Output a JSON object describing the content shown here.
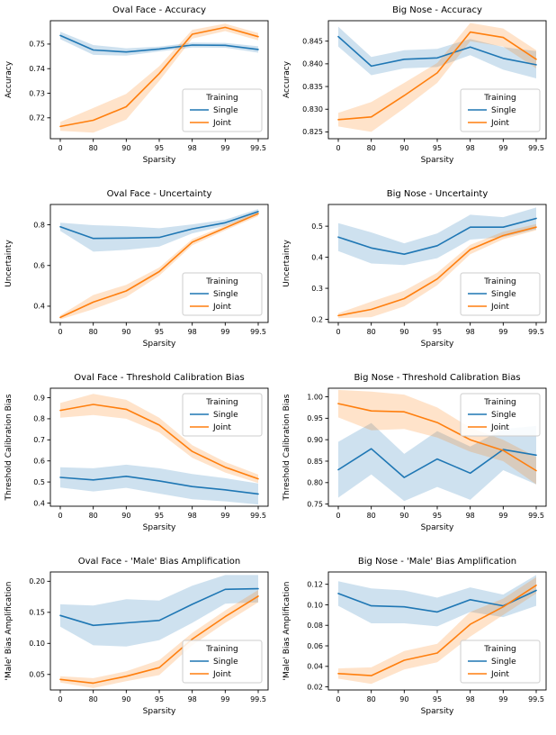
{
  "figure": {
    "background": "#ffffff",
    "legend_title": "Training",
    "series_colors": {
      "Single": "#1f77b4",
      "Joint": "#ff7f0e"
    },
    "band_opacity": 0.22
  },
  "chart_data": [
    {
      "type": "line",
      "title": "Oval Face - Accuracy",
      "xlabel": "Sparsity",
      "ylabel": "Accuracy",
      "categories": [
        "0",
        "80",
        "90",
        "95",
        "98",
        "99",
        "99.5"
      ],
      "yticks": [
        {
          "label": "0.72",
          "value": 0.72
        },
        {
          "label": "0.73",
          "value": 0.73
        },
        {
          "label": "0.74",
          "value": 0.74
        },
        {
          "label": "0.75",
          "value": 0.75
        }
      ],
      "ylim": [
        0.7115,
        0.7595
      ],
      "grid": false,
      "legend_pos": "lower-right",
      "series": [
        {
          "name": "Single",
          "color": "#1f77b4",
          "values": [
            0.7535,
            0.7476,
            0.7468,
            0.748,
            0.7496,
            0.7495,
            0.7478
          ],
          "band": [
            0.0015,
            0.002,
            0.0015,
            0.001,
            0.001,
            0.001,
            0.0013
          ]
        },
        {
          "name": "Joint",
          "color": "#ff7f0e",
          "values": [
            0.7165,
            0.719,
            0.7245,
            0.738,
            0.754,
            0.7568,
            0.753
          ],
          "band": [
            0.0018,
            0.005,
            0.0052,
            0.003,
            0.0018,
            0.0015,
            0.0015
          ]
        }
      ]
    },
    {
      "type": "line",
      "title": "Big Nose - Accuracy",
      "xlabel": "Sparsity",
      "ylabel": "Accuracy",
      "categories": [
        "0",
        "80",
        "90",
        "95",
        "98",
        "99",
        "99.5"
      ],
      "yticks": [
        {
          "label": "0.825",
          "value": 0.825
        },
        {
          "label": "0.830",
          "value": 0.83
        },
        {
          "label": "0.835",
          "value": 0.835
        },
        {
          "label": "0.840",
          "value": 0.84
        },
        {
          "label": "0.845",
          "value": 0.845
        }
      ],
      "ylim": [
        0.8235,
        0.8495
      ],
      "grid": false,
      "legend_pos": "lower-right",
      "series": [
        {
          "name": "Single",
          "color": "#1f77b4",
          "values": [
            0.846,
            0.8395,
            0.841,
            0.8413,
            0.8437,
            0.8412,
            0.8398
          ],
          "band": [
            0.0022,
            0.002,
            0.002,
            0.002,
            0.0018,
            0.0025,
            0.003
          ]
        },
        {
          "name": "Joint",
          "color": "#ff7f0e",
          "values": [
            0.8277,
            0.8283,
            0.833,
            0.838,
            0.847,
            0.8458,
            0.841
          ],
          "band": [
            0.0015,
            0.0033,
            0.0028,
            0.0022,
            0.002,
            0.002,
            0.002
          ]
        }
      ]
    },
    {
      "type": "line",
      "title": "Oval Face - Uncertainty",
      "xlabel": "Sparsity",
      "ylabel": "Uncertainty",
      "categories": [
        "0",
        "80",
        "90",
        "95",
        "98",
        "99",
        "99.5"
      ],
      "yticks": [
        {
          "label": "0.4",
          "value": 0.4
        },
        {
          "label": "0.6",
          "value": 0.6
        },
        {
          "label": "0.8",
          "value": 0.8
        }
      ],
      "ylim": [
        0.32,
        0.9
      ],
      "grid": false,
      "legend_pos": "lower-right",
      "series": [
        {
          "name": "Single",
          "color": "#1f77b4",
          "values": [
            0.79,
            0.733,
            0.735,
            0.738,
            0.78,
            0.81,
            0.865
          ],
          "band": [
            0.02,
            0.065,
            0.058,
            0.045,
            0.022,
            0.015,
            0.013
          ]
        },
        {
          "name": "Joint",
          "color": "#ff7f0e",
          "values": [
            0.345,
            0.42,
            0.475,
            0.57,
            0.715,
            0.785,
            0.855
          ],
          "band": [
            0.01,
            0.035,
            0.03,
            0.02,
            0.015,
            0.012,
            0.012
          ]
        }
      ]
    },
    {
      "type": "line",
      "title": "Big Nose - Uncertainty",
      "xlabel": "Sparsity",
      "ylabel": "Uncertainty",
      "categories": [
        "0",
        "80",
        "90",
        "95",
        "98",
        "99",
        "99.5"
      ],
      "yticks": [
        {
          "label": "0.2",
          "value": 0.2
        },
        {
          "label": "0.3",
          "value": 0.3
        },
        {
          "label": "0.4",
          "value": 0.4
        },
        {
          "label": "0.5",
          "value": 0.5
        }
      ],
      "ylim": [
        0.19,
        0.57
      ],
      "grid": false,
      "legend_pos": "lower-right",
      "series": [
        {
          "name": "Single",
          "color": "#1f77b4",
          "values": [
            0.465,
            0.43,
            0.41,
            0.437,
            0.497,
            0.497,
            0.525
          ],
          "band": [
            0.045,
            0.05,
            0.035,
            0.04,
            0.04,
            0.032,
            0.035
          ]
        },
        {
          "name": "Joint",
          "color": "#ff7f0e",
          "values": [
            0.212,
            0.232,
            0.267,
            0.33,
            0.425,
            0.47,
            0.497
          ],
          "band": [
            0.008,
            0.025,
            0.025,
            0.02,
            0.015,
            0.012,
            0.01
          ]
        }
      ]
    },
    {
      "type": "line",
      "title": "Oval Face - Threshold Calibration Bias",
      "xlabel": "Sparsity",
      "ylabel": "Threshold Calibration Bias",
      "categories": [
        "0",
        "80",
        "90",
        "95",
        "98",
        "99",
        "99.5"
      ],
      "yticks": [
        {
          "label": "0.4",
          "value": 0.4
        },
        {
          "label": "0.5",
          "value": 0.5
        },
        {
          "label": "0.6",
          "value": 0.6
        },
        {
          "label": "0.7",
          "value": 0.7
        },
        {
          "label": "0.8",
          "value": 0.8
        },
        {
          "label": "0.9",
          "value": 0.9
        }
      ],
      "ylim": [
        0.385,
        0.945
      ],
      "grid": false,
      "legend_pos": "upper-right",
      "series": [
        {
          "name": "Single",
          "color": "#1f77b4",
          "values": [
            0.522,
            0.51,
            0.527,
            0.505,
            0.478,
            0.463,
            0.443
          ],
          "band": [
            0.048,
            0.055,
            0.055,
            0.06,
            0.06,
            0.055,
            0.05
          ]
        },
        {
          "name": "Joint",
          "color": "#ff7f0e",
          "values": [
            0.84,
            0.868,
            0.845,
            0.77,
            0.645,
            0.57,
            0.515
          ],
          "band": [
            0.035,
            0.05,
            0.045,
            0.035,
            0.03,
            0.025,
            0.02
          ]
        }
      ]
    },
    {
      "type": "line",
      "title": "Big Nose - Threshold Calibration Bias",
      "xlabel": "Sparsity",
      "ylabel": "Threshold Calibration Bias",
      "categories": [
        "0",
        "80",
        "90",
        "95",
        "98",
        "99",
        "99.5"
      ],
      "yticks": [
        {
          "label": "0.75",
          "value": 0.75
        },
        {
          "label": "0.80",
          "value": 0.8
        },
        {
          "label": "0.85",
          "value": 0.85
        },
        {
          "label": "0.90",
          "value": 0.9
        },
        {
          "label": "0.95",
          "value": 0.95
        },
        {
          "label": "1.00",
          "value": 1.0
        }
      ],
      "ylim": [
        0.745,
        1.02
      ],
      "grid": false,
      "legend_pos": "upper-right",
      "series": [
        {
          "name": "Single",
          "color": "#1f77b4",
          "values": [
            0.83,
            0.879,
            0.812,
            0.855,
            0.822,
            0.877,
            0.864
          ],
          "band": [
            0.065,
            0.06,
            0.055,
            0.065,
            0.062,
            0.048,
            0.068
          ]
        },
        {
          "name": "Joint",
          "color": "#ff7f0e",
          "values": [
            0.984,
            0.967,
            0.965,
            0.94,
            0.9,
            0.875,
            0.828
          ],
          "band": [
            0.032,
            0.045,
            0.04,
            0.035,
            0.028,
            0.025,
            0.032
          ]
        }
      ]
    },
    {
      "type": "line",
      "title": "Oval Face - 'Male' Bias Amplification",
      "xlabel": "Sparsity",
      "ylabel": "'Male' Bias Amplification",
      "categories": [
        "0",
        "80",
        "90",
        "95",
        "98",
        "99",
        "99.5"
      ],
      "yticks": [
        {
          "label": "0.05",
          "value": 0.05
        },
        {
          "label": "0.10",
          "value": 0.1
        },
        {
          "label": "0.15",
          "value": 0.15
        },
        {
          "label": "0.20",
          "value": 0.2
        }
      ],
      "ylim": [
        0.025,
        0.215
      ],
      "grid": false,
      "legend_pos": "lower-right",
      "series": [
        {
          "name": "Single",
          "color": "#1f77b4",
          "values": [
            0.145,
            0.129,
            0.133,
            0.137,
            0.163,
            0.187,
            0.188
          ],
          "band": [
            0.018,
            0.032,
            0.038,
            0.032,
            0.03,
            0.023,
            0.022
          ]
        },
        {
          "name": "Joint",
          "color": "#ff7f0e",
          "values": [
            0.042,
            0.036,
            0.047,
            0.061,
            0.107,
            0.143,
            0.176
          ],
          "band": [
            0.005,
            0.008,
            0.008,
            0.012,
            0.01,
            0.01,
            0.01
          ]
        }
      ]
    },
    {
      "type": "line",
      "title": "Big Nose - 'Male' Bias Amplification",
      "xlabel": "Sparsity",
      "ylabel": "'Male' Bias Amplification",
      "categories": [
        "0",
        "80",
        "90",
        "95",
        "98",
        "99",
        "99.5"
      ],
      "yticks": [
        {
          "label": "0.02",
          "value": 0.02
        },
        {
          "label": "0.04",
          "value": 0.04
        },
        {
          "label": "0.06",
          "value": 0.06
        },
        {
          "label": "0.08",
          "value": 0.08
        },
        {
          "label": "0.10",
          "value": 0.1
        },
        {
          "label": "0.12",
          "value": 0.12
        }
      ],
      "ylim": [
        0.017,
        0.132
      ],
      "grid": false,
      "legend_pos": "lower-right",
      "series": [
        {
          "name": "Single",
          "color": "#1f77b4",
          "values": [
            0.111,
            0.099,
            0.098,
            0.093,
            0.105,
            0.099,
            0.114
          ],
          "band": [
            0.012,
            0.017,
            0.016,
            0.014,
            0.012,
            0.011,
            0.015
          ]
        },
        {
          "name": "Joint",
          "color": "#ff7f0e",
          "values": [
            0.033,
            0.031,
            0.046,
            0.053,
            0.081,
            0.098,
            0.119
          ],
          "band": [
            0.005,
            0.008,
            0.009,
            0.009,
            0.012,
            0.008,
            0.008
          ]
        }
      ]
    }
  ]
}
